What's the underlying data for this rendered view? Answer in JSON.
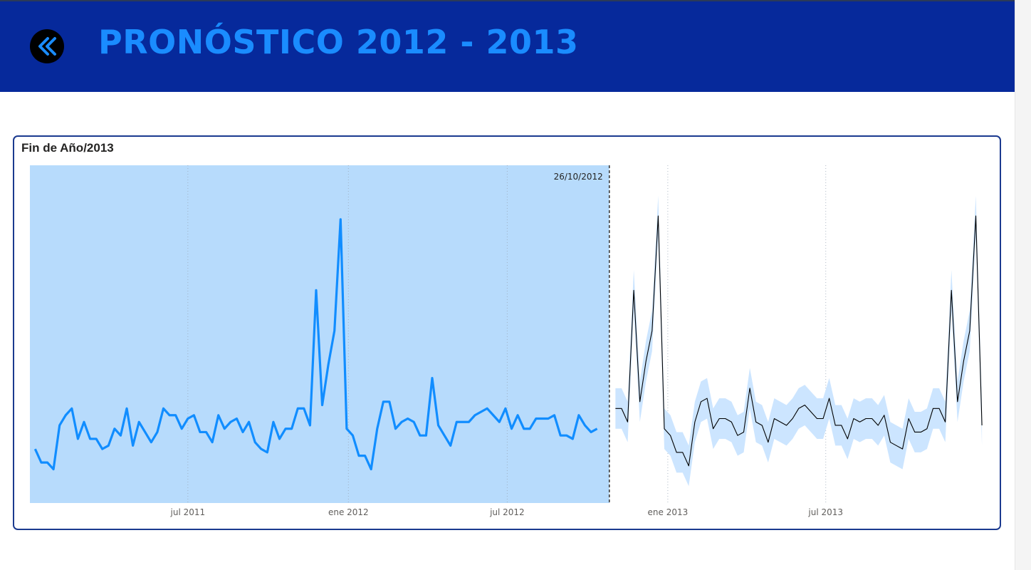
{
  "header": {
    "title": "PRONÓSTICO 2012 - 2013",
    "back_icon": "double-chevron-left-icon",
    "background": "#06299b",
    "title_color": "#1a8cff"
  },
  "card": {
    "title": "Fin de Año/2013",
    "border_color": "#1b3a8f"
  },
  "chart_data": {
    "type": "line",
    "title": "Fin de Año/2013",
    "xlabel": "",
    "ylabel": "",
    "x_range": [
      "2011-01-01",
      "2013-12-31"
    ],
    "y_range": [
      0,
      100
    ],
    "y_axis_visible": false,
    "x_ticks": [
      {
        "date": "2011-07-01",
        "label": "jul 2011"
      },
      {
        "date": "2012-01-01",
        "label": "ene 2012"
      },
      {
        "date": "2012-07-01",
        "label": "jul 2012"
      },
      {
        "date": "2013-01-01",
        "label": "ene 2013"
      },
      {
        "date": "2013-07-01",
        "label": "jul 2013"
      }
    ],
    "grid": "vertical dotted",
    "forecast_start": {
      "date": "2012-10-26",
      "label": "26/10/2012"
    },
    "colors": {
      "actual_line": "#118dff",
      "actual_shade": "#b7dbfc",
      "forecast_line": "#000000",
      "forecast_band": "#cce5ff",
      "marker_line": "#3c3c3c"
    },
    "series": [
      {
        "role": "actual",
        "start": "2011-01-07",
        "step_days": 7,
        "values": [
          16,
          12,
          12,
          10,
          23,
          26,
          28,
          19,
          24,
          19,
          19,
          16,
          17,
          22,
          20,
          28,
          17,
          24,
          21,
          18,
          21,
          28,
          26,
          26,
          22,
          25,
          26,
          21,
          21,
          18,
          26,
          22,
          24,
          25,
          21,
          24,
          18,
          16,
          15,
          24,
          19,
          22,
          22,
          28,
          28,
          23,
          63,
          29,
          41,
          51,
          84,
          22,
          20,
          14,
          14,
          10,
          22,
          30,
          30,
          22,
          24,
          25,
          24,
          20,
          20,
          37,
          23,
          20,
          17,
          24,
          24,
          24,
          26,
          27,
          28,
          26,
          24,
          28,
          22,
          26,
          22,
          22,
          25,
          25,
          25,
          26,
          20,
          20,
          19,
          26,
          23,
          21,
          22
        ]
      },
      {
        "role": "forecast",
        "start": "2012-11-02",
        "step_days": 7,
        "values": [
          28,
          28,
          24,
          63,
          30,
          42,
          51,
          85,
          22,
          20,
          15,
          15,
          11,
          24,
          30,
          31,
          22,
          25,
          25,
          24,
          20,
          21,
          34,
          24,
          23,
          18,
          25,
          24,
          23,
          25,
          28,
          29,
          27,
          25,
          25,
          31,
          23,
          23,
          19,
          25,
          24,
          25,
          25,
          23,
          26,
          18,
          17,
          16,
          25,
          21,
          21,
          22,
          28,
          28,
          24,
          63,
          30,
          42,
          51,
          85,
          23
        ]
      }
    ],
    "forecast_band_halfwidth": 6
  }
}
